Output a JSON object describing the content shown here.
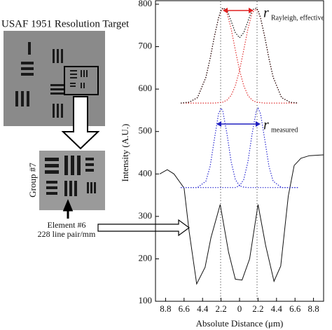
{
  "figure": {
    "title": "USAF 1951 Resolution Target",
    "group_label": "Group #7",
    "element_label": "Element #6",
    "element_detail": "228 line pair/mm"
  },
  "chart_data": {
    "type": "line",
    "x_label": "Absolute Distance (μm)",
    "y_label": "Intensity (A.U.)",
    "xlim": [
      -10,
      10
    ],
    "ylim": [
      100,
      800
    ],
    "xticks": [
      {
        "value": -8.8,
        "label": "8.8"
      },
      {
        "value": -6.6,
        "label": "6.6"
      },
      {
        "value": -4.4,
        "label": "4.4"
      },
      {
        "value": -2.2,
        "label": "2.2"
      },
      0,
      2.2,
      4.4,
      6.6,
      8.8
    ],
    "yticks": [
      100,
      200,
      300,
      400,
      500,
      600,
      700,
      800
    ],
    "annotations": [
      {
        "text": "r",
        "sub": "Rayleigh, effective",
        "color": "#e02020"
      },
      {
        "text": "r",
        "sub": "measured",
        "color": "#2020c0"
      }
    ],
    "series": [
      {
        "color": "#111111",
        "dash": "solid",
        "x": [
          -9.5,
          -8.6,
          -7.8,
          -6.6,
          -6,
          -5.1,
          -4.1,
          -3.4,
          -2.3,
          -1.3,
          -0.5,
          0.3,
          1.2,
          2.2,
          3.1,
          4.1,
          4.9,
          5.8,
          6.5,
          7.3,
          8.3,
          10
        ],
        "values": [
          400,
          410,
          400,
          367,
          265,
          141,
          180,
          250,
          328,
          215,
          152,
          150,
          200,
          328,
          232,
          147,
          183,
          348,
          420,
          437,
          443,
          445
        ]
      },
      {
        "color": "#2a2ad0",
        "dash": "dotted",
        "x": [
          -7,
          -6,
          -5,
          -4,
          -3.5,
          -3,
          -2.5,
          -2.2,
          -2,
          -1.5,
          -1,
          -0.5,
          0,
          0.5,
          1,
          1.5,
          2,
          2.2,
          2.5,
          3,
          3.5,
          4,
          5,
          6,
          7
        ],
        "values": [
          368,
          368,
          368,
          383,
          418,
          481,
          542,
          555,
          549,
          495,
          429,
          387,
          372,
          369,
          368,
          368,
          368,
          368,
          368,
          368,
          368,
          368,
          368,
          368,
          368
        ]
      },
      {
        "color": "#2a2ad0",
        "dash": "dotted",
        "x": [
          -7,
          -6,
          -5,
          -4,
          -3.5,
          -3,
          -2.5,
          -2.2,
          -2,
          -1.5,
          -1,
          -0.5,
          0,
          0.5,
          1,
          1.5,
          2,
          2.2,
          2.5,
          3,
          3.5,
          4,
          5,
          6,
          7
        ],
        "values": [
          368,
          368,
          368,
          368,
          368,
          368,
          368,
          368,
          368,
          368,
          368,
          368,
          372,
          387,
          429,
          495,
          549,
          555,
          542,
          481,
          418,
          383,
          368,
          368,
          368
        ]
      },
      {
        "color": "#e03030",
        "dash": "dotted",
        "x": [
          -7,
          -6,
          -5,
          -4,
          -3.5,
          -3,
          -2.5,
          -2.2,
          -2,
          -1.5,
          -1,
          -0.5,
          0,
          0.5,
          1,
          1.5,
          2,
          2.2,
          2.5,
          3,
          3.5,
          4,
          5,
          6,
          7
        ],
        "values": [
          567,
          569,
          580,
          628,
          672,
          723,
          767,
          784,
          789,
          780,
          742,
          692,
          644,
          608,
          585,
          574,
          569,
          569,
          568,
          567,
          567,
          567,
          567,
          567,
          567
        ]
      },
      {
        "color": "#e03030",
        "dash": "dotted",
        "x": [
          -7,
          -6,
          -5,
          -4,
          -3.5,
          -3,
          -2.5,
          -2.2,
          -2,
          -1.5,
          -1,
          -0.5,
          0,
          0.5,
          1,
          1.5,
          2,
          2.2,
          2.5,
          3,
          3.5,
          4,
          5,
          6,
          7
        ],
        "values": [
          567,
          567,
          567,
          567,
          567,
          567,
          568,
          569,
          569,
          574,
          585,
          608,
          644,
          692,
          742,
          780,
          789,
          784,
          767,
          723,
          672,
          628,
          580,
          569,
          567
        ]
      },
      {
        "color": "#111111",
        "dash": "dotted",
        "x": [
          -7,
          -6,
          -5,
          -4,
          -3.5,
          -3,
          -2.5,
          -2.2,
          -2,
          -1.5,
          -1,
          -0.5,
          0,
          0.5,
          1,
          1.5,
          2,
          2.2,
          2.5,
          3,
          3.5,
          4,
          5,
          6,
          7
        ],
        "values": [
          567,
          569,
          580,
          628,
          672,
          723,
          768,
          786,
          791,
          787,
          760,
          733,
          721,
          733,
          760,
          787,
          791,
          786,
          768,
          723,
          672,
          628,
          580,
          569,
          567
        ]
      }
    ]
  }
}
